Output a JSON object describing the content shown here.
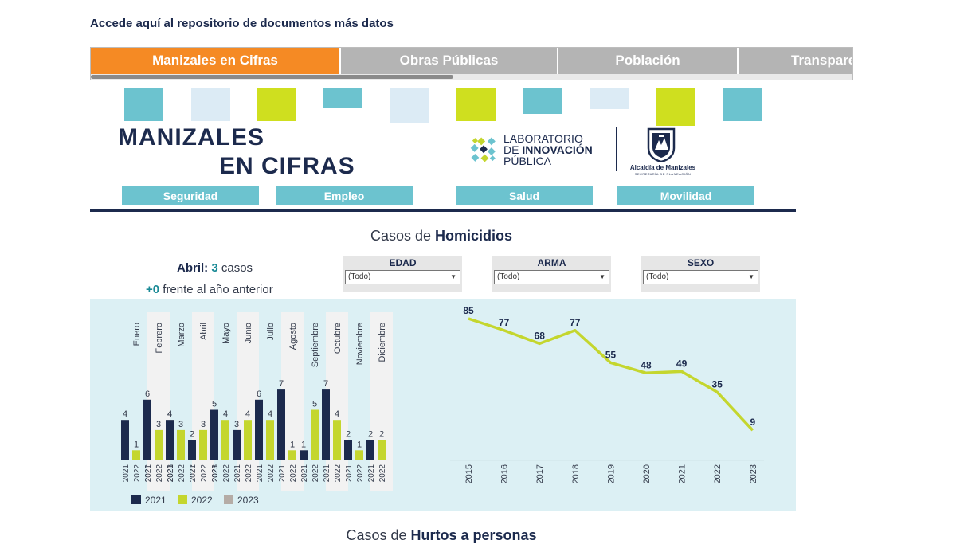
{
  "top_link": "Accede aquí al repositorio de documentos más datos",
  "tabs": [
    {
      "label": "Manizales en Cifras",
      "active": true
    },
    {
      "label": "Obras Públicas",
      "active": false
    },
    {
      "label": "Población",
      "active": false
    },
    {
      "label": "Transparencia",
      "active": false
    }
  ],
  "colors": {
    "navy": "#1c2a4d",
    "lime": "#c4d62e",
    "gray": "#b5aca6",
    "teal": "#6cc3cf",
    "orange": "#f58a24",
    "light_blue": "#dcebf5"
  },
  "header": {
    "title_line1": "MANIZALES",
    "title_line2": "EN CIFRAS",
    "lab": {
      "line1": "LABORATORIO",
      "line2_prefix": "DE ",
      "line2_bold": "INNOVACIÓN",
      "line3": "PÚBLICA"
    },
    "alcaldia": {
      "name": "Alcaldía de Manizales",
      "sub": "SECRETARÍA DE PLANEACIÓN"
    }
  },
  "categories": [
    "Seguridad",
    "Empleo",
    "Salud",
    "Movilidad"
  ],
  "section": {
    "prefix": "Casos de ",
    "bold": "Homicidios"
  },
  "kpi": {
    "month": "Abril:",
    "cases": "3",
    "cases_unit": "casos",
    "delta": "+0",
    "delta_text": "frente al año anterior"
  },
  "filters": [
    {
      "label": "EDAD",
      "value": "(Todo)"
    },
    {
      "label": "ARMA",
      "value": "(Todo)"
    },
    {
      "label": "SEXO",
      "value": "(Todo)"
    }
  ],
  "next_section": {
    "prefix": "Casos de ",
    "bold": "Hurtos a personas"
  },
  "chart_data": [
    {
      "type": "bar",
      "categories": [
        "Enero",
        "Febrero",
        "Marzo",
        "Abril",
        "Mayo",
        "Junio",
        "Julio",
        "Agosto",
        "Septiembre",
        "Octubre",
        "Noviembre",
        "Diciembre"
      ],
      "series": [
        {
          "name": "2021",
          "values": [
            4,
            6,
            4,
            2,
            5,
            3,
            6,
            7,
            1,
            7,
            2,
            2
          ]
        },
        {
          "name": "2022",
          "values": [
            1,
            3,
            3,
            3,
            4,
            4,
            4,
            1,
            5,
            4,
            1,
            2
          ]
        },
        {
          "name": "2023",
          "values": [
            0,
            4,
            2,
            3,
            null,
            null,
            null,
            null,
            null,
            null,
            null,
            null
          ]
        }
      ],
      "legend": "bottom-left"
    },
    {
      "type": "line",
      "x": [
        "2015",
        "2016",
        "2017",
        "2018",
        "2019",
        "2020",
        "2021",
        "2022",
        "2023"
      ],
      "values": [
        85,
        77,
        68,
        77,
        55,
        48,
        49,
        35,
        9
      ]
    }
  ]
}
